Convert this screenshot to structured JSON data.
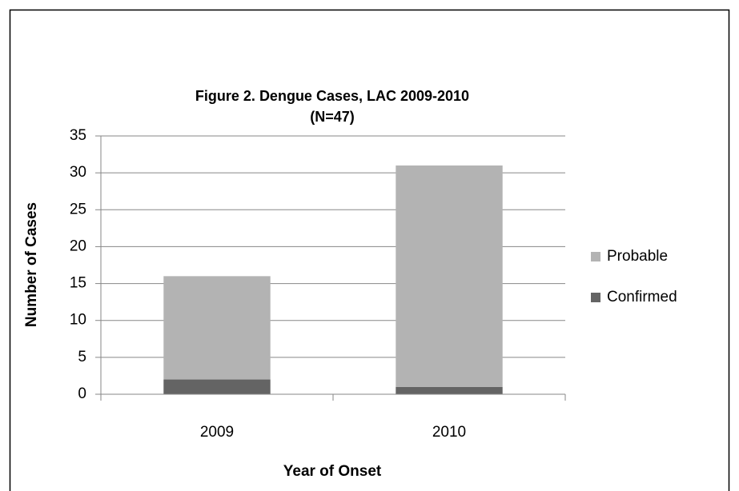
{
  "chart_data": {
    "type": "stacked-bar",
    "title": "Figure 2. Dengue Cases, LAC 2009-2010",
    "subtitle": "(N=47)",
    "x_label": "Year of Onset",
    "y_label": "Number of Cases",
    "categories": [
      "2009",
      "2010"
    ],
    "series": [
      {
        "name": "Confirmed",
        "color": "#646464",
        "values": [
          2,
          1
        ]
      },
      {
        "name": "Probable",
        "color": "#b3b3b3",
        "values": [
          14,
          30
        ]
      }
    ],
    "ylim": [
      0,
      35
    ],
    "yticks": [
      0,
      5,
      10,
      15,
      20,
      25,
      30,
      35
    ],
    "grid": true,
    "legend": "right"
  }
}
